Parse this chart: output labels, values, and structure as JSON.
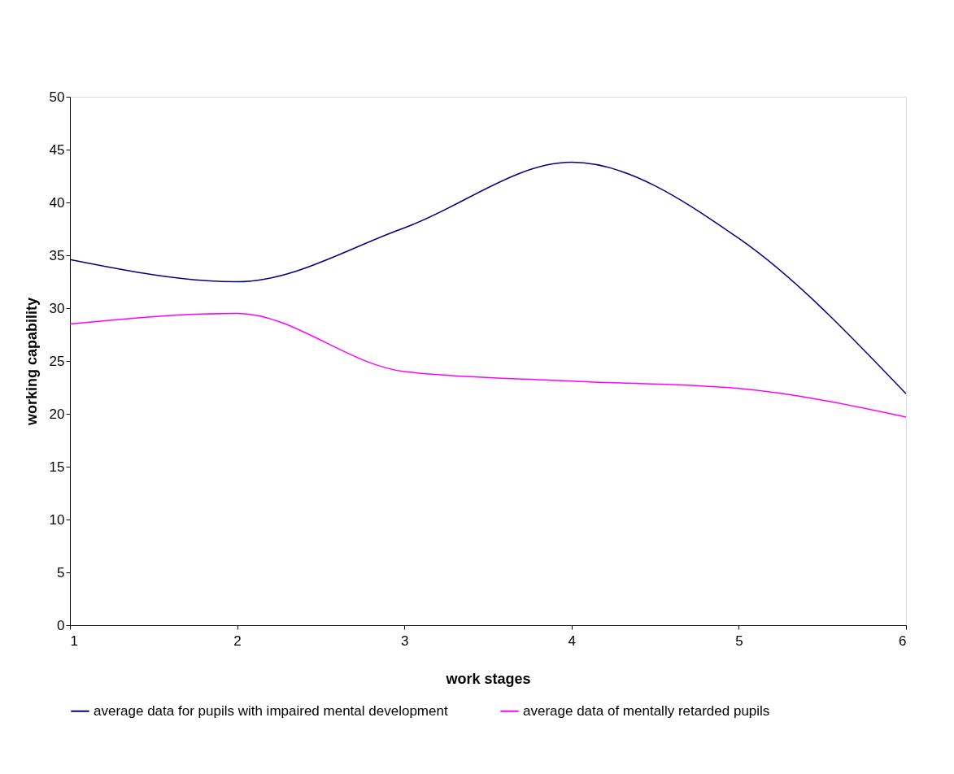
{
  "chart_data": {
    "type": "line",
    "xlabel": "work stages",
    "ylabel": "working capability",
    "x": [
      1,
      2,
      3,
      4,
      5,
      6
    ],
    "xlim": [
      1,
      6
    ],
    "xticks": [
      1,
      2,
      3,
      4,
      5,
      6
    ],
    "ylim": [
      0,
      50
    ],
    "yticks": [
      0,
      5,
      10,
      15,
      20,
      25,
      30,
      35,
      40,
      45,
      50
    ],
    "series": [
      {
        "name": "average data for pupils with impaired mental development",
        "color": "#000080",
        "values": [
          34.6,
          32.5,
          37.6,
          43.8,
          36.6,
          21.9
        ]
      },
      {
        "name": "average data of mentally retarded pupils",
        "color": "#ff00ff",
        "values": [
          28.5,
          29.5,
          24.0,
          23.1,
          22.4,
          19.7
        ]
      }
    ],
    "grid": false,
    "legend": "bottom",
    "marker": "none",
    "line_style": "solid"
  }
}
